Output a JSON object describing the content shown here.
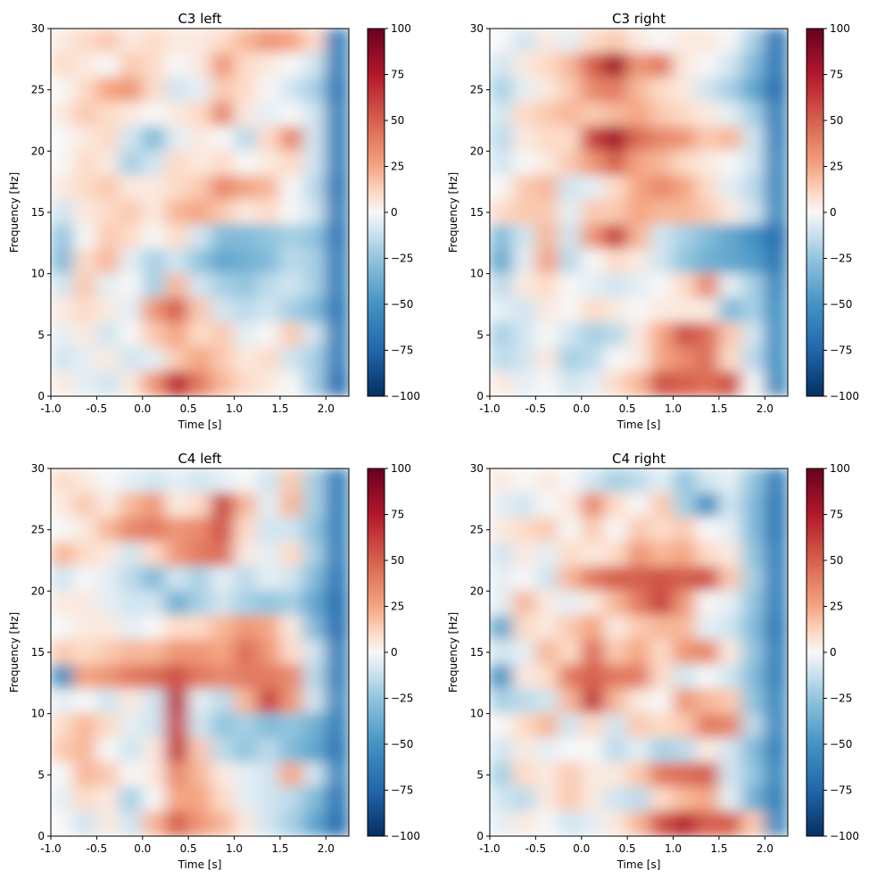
{
  "chart_data": {
    "type": "heatmap",
    "colormap": "RdBu_r",
    "clim": [
      -100,
      100
    ],
    "colorbar_ticks": [
      100,
      75,
      50,
      25,
      0,
      -25,
      -50,
      -75,
      -100
    ],
    "xlim": [
      -1.0,
      2.25
    ],
    "ylim": [
      0,
      30
    ],
    "xticks": [
      -1.0,
      -0.5,
      0.0,
      0.5,
      1.0,
      1.5,
      2.0
    ],
    "yticks": [
      0,
      5,
      10,
      15,
      20,
      25,
      30
    ],
    "time_centers": [
      -0.875,
      -0.625,
      -0.375,
      -0.125,
      0.125,
      0.375,
      0.625,
      0.875,
      1.125,
      1.375,
      1.625,
      1.875,
      2.125
    ],
    "freq_centers_top_down": [
      29,
      27,
      25,
      23,
      21,
      19,
      17,
      15,
      13,
      11,
      9,
      7,
      5,
      3,
      1
    ],
    "panels": [
      {
        "title": "C3 left",
        "xlabel": "Time [s]",
        "ylabel": "Frequency [Hz]",
        "z": [
          [
            5,
            10,
            15,
            5,
            10,
            5,
            5,
            10,
            20,
            30,
            25,
            10,
            -60
          ],
          [
            10,
            5,
            0,
            15,
            10,
            0,
            5,
            30,
            10,
            5,
            0,
            -10,
            -60
          ],
          [
            0,
            10,
            25,
            30,
            10,
            -10,
            -5,
            15,
            10,
            0,
            -10,
            -20,
            -65
          ],
          [
            5,
            15,
            10,
            5,
            0,
            5,
            10,
            35,
            5,
            -5,
            0,
            -10,
            -60
          ],
          [
            0,
            5,
            10,
            -10,
            -30,
            -5,
            5,
            0,
            -15,
            10,
            35,
            -10,
            -60
          ],
          [
            0,
            10,
            5,
            -20,
            -10,
            10,
            5,
            10,
            0,
            5,
            10,
            -10,
            -60
          ],
          [
            5,
            10,
            15,
            5,
            5,
            10,
            15,
            35,
            25,
            20,
            0,
            -15,
            -65
          ],
          [
            -10,
            5,
            10,
            15,
            5,
            20,
            25,
            15,
            5,
            10,
            0,
            -10,
            -60
          ],
          [
            -25,
            0,
            15,
            10,
            0,
            10,
            -10,
            -30,
            -30,
            -25,
            -20,
            -25,
            -65
          ],
          [
            -30,
            10,
            20,
            -5,
            -20,
            -10,
            -25,
            -40,
            -35,
            -30,
            -15,
            -20,
            -60
          ],
          [
            -10,
            15,
            -5,
            0,
            -20,
            20,
            -10,
            -20,
            -25,
            -15,
            -10,
            -20,
            -60
          ],
          [
            5,
            10,
            5,
            -5,
            30,
            50,
            15,
            -10,
            -15,
            -10,
            -20,
            -30,
            -65
          ],
          [
            -5,
            5,
            -10,
            0,
            15,
            25,
            10,
            15,
            -5,
            0,
            15,
            -10,
            -60
          ],
          [
            -10,
            -5,
            5,
            -10,
            -5,
            15,
            25,
            15,
            5,
            10,
            -10,
            -20,
            -60
          ],
          [
            5,
            -5,
            -10,
            5,
            30,
            70,
            40,
            20,
            10,
            5,
            0,
            -20,
            -70
          ]
        ]
      },
      {
        "title": "C3 right",
        "xlabel": "Time [s]",
        "ylabel": "Frequency [Hz]",
        "z": [
          [
            0,
            -10,
            5,
            -5,
            10,
            15,
            5,
            0,
            5,
            5,
            0,
            -20,
            -65
          ],
          [
            -10,
            5,
            10,
            20,
            50,
            80,
            30,
            40,
            5,
            0,
            -10,
            -30,
            -65
          ],
          [
            -20,
            -5,
            5,
            15,
            35,
            40,
            20,
            10,
            5,
            -10,
            -20,
            -40,
            -70
          ],
          [
            -10,
            10,
            15,
            20,
            15,
            20,
            25,
            15,
            10,
            5,
            -5,
            -20,
            -60
          ],
          [
            -15,
            5,
            10,
            10,
            60,
            80,
            45,
            35,
            30,
            15,
            20,
            -10,
            -60
          ],
          [
            -10,
            0,
            5,
            15,
            30,
            50,
            25,
            20,
            10,
            5,
            0,
            -10,
            -55
          ],
          [
            0,
            15,
            20,
            -10,
            -5,
            10,
            25,
            35,
            25,
            10,
            -5,
            -15,
            -55
          ],
          [
            10,
            15,
            15,
            -5,
            15,
            15,
            25,
            20,
            20,
            15,
            5,
            -10,
            -55
          ],
          [
            -30,
            -10,
            20,
            -10,
            30,
            60,
            20,
            -10,
            -20,
            -30,
            -40,
            -50,
            -70
          ],
          [
            -40,
            -5,
            25,
            -15,
            0,
            10,
            5,
            -10,
            -25,
            -35,
            -40,
            -45,
            -65
          ],
          [
            -15,
            5,
            10,
            0,
            -5,
            -10,
            -5,
            0,
            10,
            35,
            -5,
            -20,
            -55
          ],
          [
            -5,
            -10,
            5,
            0,
            10,
            5,
            0,
            5,
            5,
            5,
            -30,
            -20,
            -50
          ],
          [
            -20,
            -10,
            0,
            -10,
            -20,
            -15,
            5,
            25,
            55,
            45,
            15,
            -10,
            -50
          ],
          [
            -15,
            -10,
            5,
            -20,
            -15,
            0,
            5,
            25,
            35,
            45,
            10,
            -15,
            -50
          ],
          [
            5,
            -5,
            0,
            -10,
            -5,
            10,
            20,
            55,
            50,
            45,
            55,
            0,
            -55
          ]
        ]
      },
      {
        "title": "C4 left",
        "xlabel": "Time [s]",
        "ylabel": "Frequency [Hz]",
        "z": [
          [
            10,
            5,
            0,
            -5,
            -10,
            -5,
            -10,
            -5,
            0,
            -10,
            15,
            -20,
            -60
          ],
          [
            5,
            15,
            5,
            20,
            30,
            5,
            10,
            60,
            20,
            -5,
            20,
            -20,
            -60
          ],
          [
            0,
            5,
            20,
            35,
            40,
            30,
            35,
            55,
            10,
            -10,
            -10,
            -25,
            -60
          ],
          [
            20,
            10,
            5,
            -10,
            10,
            30,
            40,
            45,
            5,
            -5,
            10,
            -20,
            -60
          ],
          [
            -10,
            0,
            -5,
            -15,
            -30,
            -10,
            -20,
            -5,
            -15,
            -5,
            -10,
            -30,
            -65
          ],
          [
            5,
            5,
            -5,
            -10,
            -10,
            -35,
            -20,
            -10,
            -20,
            -25,
            -20,
            -40,
            -70
          ],
          [
            0,
            5,
            5,
            -5,
            0,
            10,
            10,
            20,
            30,
            25,
            5,
            -30,
            -70
          ],
          [
            15,
            10,
            15,
            20,
            20,
            30,
            30,
            25,
            45,
            30,
            10,
            -10,
            -60
          ],
          [
            -50,
            25,
            30,
            40,
            45,
            55,
            40,
            35,
            40,
            40,
            35,
            -15,
            -60
          ],
          [
            -5,
            0,
            -10,
            5,
            -10,
            70,
            -5,
            -15,
            20,
            60,
            30,
            -10,
            -55
          ],
          [
            10,
            20,
            10,
            -5,
            -10,
            60,
            -10,
            -25,
            -20,
            -30,
            -25,
            -35,
            -60
          ],
          [
            15,
            20,
            0,
            -10,
            5,
            65,
            15,
            -15,
            -25,
            -15,
            -30,
            -40,
            -65
          ],
          [
            0,
            20,
            15,
            0,
            5,
            35,
            20,
            5,
            -5,
            -10,
            25,
            -10,
            -55
          ],
          [
            -5,
            10,
            5,
            -20,
            0,
            25,
            25,
            10,
            -5,
            -10,
            -15,
            -30,
            -65
          ],
          [
            0,
            -10,
            5,
            -10,
            20,
            50,
            30,
            20,
            5,
            -10,
            -20,
            -40,
            -70
          ]
        ]
      },
      {
        "title": "C4 right",
        "xlabel": "Time [s]",
        "ylabel": "Frequency [Hz]",
        "z": [
          [
            5,
            0,
            5,
            0,
            -10,
            -20,
            -15,
            -5,
            -25,
            -10,
            -5,
            -25,
            -60
          ],
          [
            -5,
            -10,
            0,
            5,
            35,
            10,
            0,
            15,
            -20,
            -50,
            -10,
            -30,
            -65
          ],
          [
            5,
            10,
            15,
            0,
            15,
            0,
            15,
            10,
            15,
            0,
            -5,
            -30,
            -65
          ],
          [
            -10,
            5,
            -5,
            10,
            5,
            10,
            30,
            20,
            25,
            10,
            5,
            -25,
            -60
          ],
          [
            -5,
            0,
            -10,
            20,
            40,
            50,
            50,
            55,
            50,
            55,
            15,
            -20,
            -60
          ],
          [
            -5,
            20,
            5,
            -5,
            5,
            20,
            40,
            60,
            30,
            0,
            -5,
            -25,
            -60
          ],
          [
            -40,
            10,
            5,
            15,
            25,
            5,
            15,
            20,
            20,
            -5,
            -10,
            -30,
            -65
          ],
          [
            -10,
            -5,
            20,
            10,
            45,
            15,
            25,
            10,
            30,
            35,
            5,
            -25,
            -60
          ],
          [
            -50,
            5,
            10,
            40,
            50,
            40,
            40,
            10,
            -10,
            0,
            -10,
            -30,
            -60
          ],
          [
            -20,
            -15,
            -10,
            20,
            65,
            20,
            5,
            0,
            30,
            20,
            15,
            -25,
            -55
          ],
          [
            0,
            10,
            20,
            -10,
            10,
            -10,
            15,
            10,
            15,
            40,
            35,
            -15,
            -55
          ],
          [
            -10,
            5,
            -5,
            0,
            0,
            -15,
            -5,
            -20,
            -15,
            5,
            -10,
            -30,
            -60
          ],
          [
            -20,
            10,
            5,
            15,
            5,
            5,
            15,
            40,
            45,
            50,
            -10,
            -25,
            -55
          ],
          [
            -10,
            -15,
            5,
            15,
            5,
            -10,
            -15,
            10,
            20,
            25,
            -5,
            -35,
            -60
          ],
          [
            -5,
            5,
            0,
            -10,
            -5,
            5,
            20,
            55,
            70,
            50,
            50,
            15,
            -55
          ]
        ]
      }
    ]
  }
}
